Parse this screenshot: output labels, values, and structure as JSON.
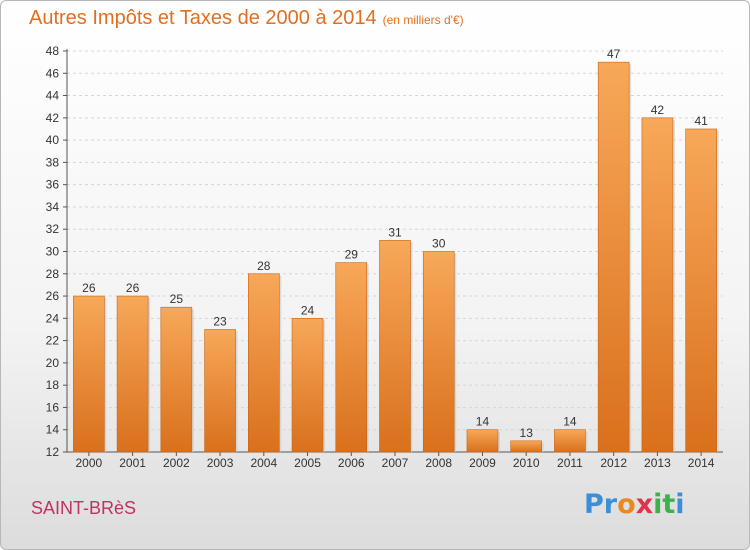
{
  "header": {
    "title": "Autres Impôts et Taxes de 2000 à 2014",
    "unit": "(en milliers d'€)"
  },
  "footer": {
    "commune": "SAINT-BRèS",
    "logo_letters": [
      "P",
      "r",
      "o",
      "x",
      "i",
      "t",
      "i"
    ],
    "logo_colors": [
      "#3b8fd6",
      "#3b8fd6",
      "#e88a1f",
      "#e3324b",
      "#3bb24a",
      "#3bb24a",
      "#3b8fd6"
    ]
  },
  "chart_data": {
    "type": "bar",
    "title": "Autres Impôts et Taxes de 2000 à 2014",
    "categories": [
      "2000",
      "2001",
      "2002",
      "2003",
      "2004",
      "2005",
      "2006",
      "2007",
      "2008",
      "2009",
      "2010",
      "2011",
      "2012",
      "2013",
      "2014"
    ],
    "values": [
      26,
      26,
      25,
      23,
      28,
      24,
      29,
      31,
      30,
      14,
      13,
      14,
      47,
      42,
      41
    ],
    "ylim": [
      12,
      48
    ],
    "yticks": [
      12,
      14,
      16,
      18,
      20,
      22,
      24,
      26,
      28,
      30,
      32,
      34,
      36,
      38,
      40,
      42,
      44,
      46,
      48
    ],
    "grid": true,
    "bar_color": "#f0923a"
  }
}
